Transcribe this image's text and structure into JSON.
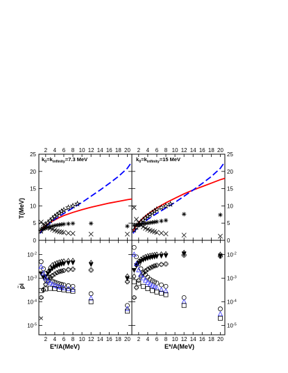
{
  "figure": {
    "colors": {
      "axis": "#000000",
      "fit_red": "#ff0000",
      "fit_blue": "#0000ff",
      "marker_black": "#000000",
      "marker_blue": "#3030ff"
    }
  },
  "chart_data": [
    {
      "type": "scatter",
      "panel": "top-left",
      "annotation": "k0=kinfinity=7.3 MeV",
      "annotation_parts": {
        "prefix": "k",
        "sub1": "0",
        "mid": "=k",
        "sub2": "infinity",
        "suffix": "=7.3 MeV"
      },
      "ylabel": "T(MeV)",
      "xlim": [
        0.5,
        21
      ],
      "ylim": [
        0,
        25
      ],
      "x_top_ticks": [
        "2",
        "4",
        "6",
        "8",
        "10",
        "12",
        "14",
        "16",
        "18",
        "20"
      ],
      "y_ticks": [
        "0",
        "5",
        "10",
        "15",
        "20",
        "25"
      ],
      "series": [
        {
          "marker": "star",
          "x": [
            1,
            1.5,
            2,
            2.5,
            3,
            3.5,
            4,
            4.5,
            5,
            5.5,
            6,
            7,
            8,
            9
          ],
          "y": [
            2.7,
            3.6,
            4.4,
            5.1,
            5.7,
            6.3,
            6.9,
            7.4,
            7.9,
            8.4,
            8.8,
            9.5,
            10,
            10.6
          ]
        },
        {
          "marker": "asterisk",
          "x": [
            1,
            1.5,
            2,
            2.5,
            3,
            3.5,
            4,
            4.5,
            5,
            5.5,
            6,
            7,
            8,
            12,
            20
          ],
          "y": [
            3.2,
            3.3,
            3.5,
            3.7,
            3.9,
            4.1,
            4.3,
            4.4,
            4.5,
            4.6,
            4.7,
            4.8,
            4.9,
            4.9,
            4.1
          ]
        },
        {
          "marker": "cross",
          "x": [
            1,
            1.5,
            2,
            2.5,
            3,
            3.5,
            4,
            4.5,
            5,
            5.5,
            6,
            7,
            8,
            12,
            20
          ],
          "y": [
            5.3,
            4.8,
            4.2,
            3.8,
            3.5,
            3.2,
            2.9,
            2.7,
            2.5,
            2.4,
            2.3,
            2.1,
            2,
            1.8,
            1.8
          ]
        }
      ],
      "curves": [
        {
          "style": "solid",
          "color": "#ff0000",
          "x": [
            0.8,
            1,
            1.5,
            2,
            3,
            4,
            5,
            6,
            8,
            10,
            12,
            14,
            16,
            18,
            20,
            21
          ],
          "y": [
            2.7,
            3,
            3.7,
            4.3,
            5.2,
            5.9,
            6.6,
            7.2,
            8.1,
            8.9,
            9.6,
            10.2,
            10.8,
            11.3,
            11.8,
            12
          ]
        },
        {
          "style": "dashed",
          "color": "#0000ff",
          "x": [
            0.8,
            1,
            2,
            4,
            6,
            8,
            10,
            12,
            14,
            16,
            18,
            20,
            21
          ],
          "y": [
            2,
            2.5,
            4,
            6.1,
            7.8,
            9.4,
            11,
            12.8,
            14.6,
            16.5,
            18.5,
            20.9,
            22.8
          ]
        }
      ]
    },
    {
      "type": "scatter",
      "panel": "top-right",
      "annotation": "k0=kinfinity=15 MeV",
      "annotation_parts": {
        "prefix": "k",
        "sub1": "0",
        "mid": "=k",
        "sub2": "infinity",
        "suffix": "=15 MeV"
      },
      "xlim": [
        0.5,
        21
      ],
      "ylim": [
        0,
        25
      ],
      "x_top_ticks": [
        "2",
        "4",
        "6",
        "8",
        "10",
        "12",
        "14",
        "16",
        "18",
        "20"
      ],
      "y_ticks": [
        "0",
        "5",
        "10",
        "15",
        "20",
        "25"
      ],
      "series": [
        {
          "marker": "star",
          "x": [
            1,
            1.5,
            2,
            2.5,
            3,
            3.5,
            4,
            4.5,
            5,
            5.5,
            6,
            7,
            8,
            9
          ],
          "y": [
            3,
            3.8,
            4.6,
            5.3,
            5.9,
            6.5,
            7,
            7.5,
            8,
            8.5,
            9,
            9.5,
            10,
            10.5
          ]
        },
        {
          "marker": "asterisk",
          "x": [
            1,
            1.5,
            2,
            2.5,
            3,
            3.5,
            4,
            4.5,
            5,
            5.5,
            6,
            7,
            8,
            12,
            20
          ],
          "y": [
            4.4,
            4.5,
            4.6,
            4.7,
            4.8,
            4.9,
            5,
            5.1,
            5.2,
            5.3,
            5.4,
            5.6,
            5.8,
            7.6,
            7.4
          ]
        },
        {
          "marker": "cross",
          "x": [
            1,
            1.5,
            2,
            2.5,
            3,
            3.5,
            4,
            4.5,
            5,
            5.5,
            6,
            7,
            8,
            12,
            20
          ],
          "y": [
            9.5,
            6.1,
            5.1,
            4.4,
            3.9,
            3.5,
            3.2,
            2.9,
            2.7,
            2.5,
            2.3,
            2.1,
            1.9,
            1.5,
            1.2
          ]
        }
      ],
      "curves": [
        {
          "style": "solid",
          "color": "#ff0000",
          "x": [
            0.8,
            1,
            1.5,
            2,
            3,
            4,
            5,
            6,
            8,
            10,
            12,
            14,
            16,
            18,
            20,
            21
          ],
          "y": [
            2.7,
            3.3,
            4.3,
            5.2,
            6.5,
            7.6,
            8.5,
            9.4,
            10.9,
            12.2,
            13.5,
            14.6,
            15.6,
            16.6,
            17.6,
            18
          ]
        },
        {
          "style": "dashed",
          "color": "#0000ff",
          "x": [
            0.8,
            1,
            2,
            4,
            6,
            8,
            10,
            12,
            14,
            16,
            18,
            20,
            21
          ],
          "y": [
            2,
            2.5,
            4,
            6.1,
            7.8,
            9.4,
            11,
            12.8,
            14.6,
            16.5,
            18.5,
            20.9,
            22.8
          ]
        }
      ]
    },
    {
      "type": "scatter",
      "panel": "bottom-left",
      "ylabel": "ρ̃i",
      "xlabel": "E*/A(MeV)",
      "yscale": "log",
      "xlim": [
        0.5,
        21
      ],
      "ylim": [
        4e-06,
        0.04
      ],
      "x_ticks": [
        "2",
        "4",
        "6",
        "8",
        "10",
        "12",
        "14",
        "16",
        "18",
        "20"
      ],
      "y_ticks": [
        "10-2",
        "10-3",
        "10-4",
        "10-5"
      ],
      "series": [
        {
          "marker": "diamond",
          "x": [
            2,
            2.5,
            3,
            3.5,
            4,
            4.5,
            5,
            5.5,
            6,
            7,
            8,
            12,
            20
          ],
          "y": [
            0.0008,
            0.0018,
            0.0028,
            0.0036,
            0.004,
            0.0044,
            0.0047,
            0.005,
            0.0052,
            0.0054,
            0.0055,
            0.0045,
            0.0012
          ]
        },
        {
          "marker": "triangle-down-filled",
          "x": [
            1,
            1.5,
            2,
            2.5,
            3,
            3.5,
            4,
            4.5,
            5,
            5.5,
            6,
            7,
            8,
            12,
            20
          ],
          "y": [
            0.0016,
            0.0011,
            0.0012,
            0.0016,
            0.0021,
            0.0026,
            0.003,
            0.0034,
            0.0037,
            0.004,
            0.0042,
            0.0045,
            0.0046,
            0.0039,
            0.001
          ]
        },
        {
          "marker": "plus-open",
          "x": [
            1,
            1.5,
            2,
            2.5,
            3,
            3.5,
            4,
            4.5,
            5,
            5.5,
            6,
            7,
            8,
            12,
            20
          ],
          "y": [
            0.00015,
            0.00032,
            0.00055,
            0.0008,
            0.0011,
            0.0013,
            0.0015,
            0.0017,
            0.0019,
            0.002,
            0.0021,
            0.0023,
            0.0024,
            0.0022,
            0.0007
          ]
        },
        {
          "marker": "circle-open",
          "x": [
            1,
            1.5,
            2,
            2.5,
            3,
            3.5,
            4,
            4.5,
            5,
            5.5,
            6,
            7,
            8,
            12,
            20
          ],
          "y": [
            0.005,
            0.0025,
            0.0016,
            0.0011,
            0.0009,
            0.00075,
            0.00068,
            0.00062,
            0.00058,
            0.00055,
            0.00052,
            0.00048,
            0.00045,
            0.00022,
            7e-05
          ]
        },
        {
          "marker": "triangle-up-open",
          "x": [
            1,
            1.5,
            2,
            2.5,
            3,
            3.5,
            4,
            4.5,
            5,
            5.5,
            6,
            7,
            8,
            12,
            20
          ],
          "y": [
            0.003,
            0.0016,
            0.001,
            0.00075,
            0.00062,
            0.00054,
            0.00049,
            0.00045,
            0.00042,
            0.0004,
            0.00038,
            0.00035,
            0.00033,
            0.00014,
            5e-05
          ]
        },
        {
          "marker": "square-open",
          "x": [
            1,
            2,
            3,
            4,
            5,
            6,
            7,
            8,
            12,
            20
          ],
          "y": [
            0.0003,
            0.00035,
            0.00037,
            0.00036,
            0.00034,
            0.00032,
            0.0003,
            0.00028,
            0.0001,
            4e-05
          ]
        },
        {
          "marker": "cross-small",
          "x": [
            1
          ],
          "y": [
            2e-05
          ]
        }
      ]
    },
    {
      "type": "scatter",
      "panel": "bottom-right",
      "xlabel": "E*/A(MeV)",
      "yscale": "log",
      "xlim": [
        0.5,
        21
      ],
      "ylim": [
        4e-06,
        0.04
      ],
      "x_ticks": [
        "2",
        "4",
        "6",
        "8",
        "10",
        "12",
        "14",
        "16",
        "18",
        "20"
      ],
      "y_ticks": [
        "10-2",
        "10-3",
        "10-4",
        "10-5"
      ],
      "series": [
        {
          "marker": "diamond",
          "x": [
            1,
            1.5,
            2,
            2.5,
            3,
            3.5,
            4,
            4.5,
            5,
            5.5,
            6,
            7,
            8,
            12,
            20
          ],
          "y": [
            0.0012,
            0.0035,
            0.005,
            0.0062,
            0.0072,
            0.008,
            0.0086,
            0.009,
            0.0094,
            0.0097,
            0.01,
            0.0103,
            0.0105,
            0.012,
            0.01
          ]
        },
        {
          "marker": "triangle-down-filled",
          "x": [
            1,
            1.5,
            2,
            2.5,
            3,
            3.5,
            4,
            4.5,
            5,
            5.5,
            6,
            7,
            8,
            12,
            20
          ],
          "y": [
            0.0022,
            0.0035,
            0.0045,
            0.0053,
            0.006,
            0.0066,
            0.0071,
            0.0075,
            0.0079,
            0.0082,
            0.0085,
            0.0089,
            0.0092,
            0.011,
            0.009
          ]
        },
        {
          "marker": "plus-open",
          "x": [
            1,
            1.5,
            2,
            2.5,
            3,
            3.5,
            4,
            4.5,
            5,
            5.5,
            6,
            7,
            8,
            12,
            20
          ],
          "y": [
            0.00015,
            0.0004,
            0.0008,
            0.0012,
            0.0016,
            0.002,
            0.0024,
            0.0027,
            0.003,
            0.0033,
            0.0035,
            0.0038,
            0.004,
            0.0095,
            0.0085
          ]
        },
        {
          "marker": "circle-open",
          "x": [
            1,
            1.5,
            2,
            2.5,
            3,
            3.5,
            4,
            4.5,
            5,
            5.5,
            6,
            7,
            8,
            12,
            20
          ],
          "y": [
            0.02,
            0.008,
            0.004,
            0.0025,
            0.0018,
            0.0014,
            0.0011,
            0.0009,
            0.00078,
            0.0007,
            0.00062,
            0.00052,
            0.00045,
            0.00015,
            5e-05
          ]
        },
        {
          "marker": "triangle-up-open",
          "x": [
            1,
            1.5,
            2,
            2.5,
            3,
            3.5,
            4,
            4.5,
            5,
            5.5,
            6,
            7,
            8,
            12,
            20
          ],
          "y": [
            0.01,
            0.004,
            0.0022,
            0.0014,
            0.001,
            0.0008,
            0.00065,
            0.00055,
            0.00048,
            0.00042,
            0.00038,
            0.00032,
            0.00028,
            0.0001,
            3e-05
          ]
        },
        {
          "marker": "square-open",
          "x": [
            1,
            2,
            3,
            4,
            5,
            6,
            7,
            8,
            12,
            20
          ],
          "y": [
            0.0007,
            0.0006,
            0.00045,
            0.00036,
            0.0003,
            0.00026,
            0.00023,
            0.0002,
            7e-05,
            2e-05
          ]
        }
      ]
    }
  ]
}
